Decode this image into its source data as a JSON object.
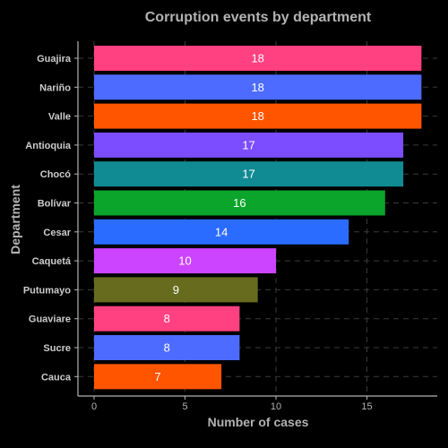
{
  "chart_data": {
    "type": "bar",
    "orientation": "horizontal",
    "title": "Corruption events by department",
    "xlabel": "Number of cases",
    "ylabel": "Department",
    "categories": [
      "Guajira",
      "Nariño",
      "Valle",
      "Antioquia",
      "Chocó",
      "Bolívar",
      "Cesar",
      "Caquetá",
      "Putumayo",
      "Guaviare",
      "Sucre",
      "Cauca"
    ],
    "values": [
      18,
      18,
      18,
      17,
      17,
      16,
      14,
      10,
      9,
      8,
      8,
      7
    ],
    "colors": [
      "#ff4081",
      "#4d6bff",
      "#ff5500",
      "#7b4dff",
      "#118b93",
      "#0ba52b",
      "#2a6cff",
      "#cc44ff",
      "#666b1e",
      "#ff4081",
      "#4d6bff",
      "#ff5500"
    ],
    "xlim": [
      0,
      18
    ],
    "xticks": [
      0,
      5,
      10,
      15
    ],
    "grid": true,
    "legend": "none",
    "background": "#000000"
  }
}
